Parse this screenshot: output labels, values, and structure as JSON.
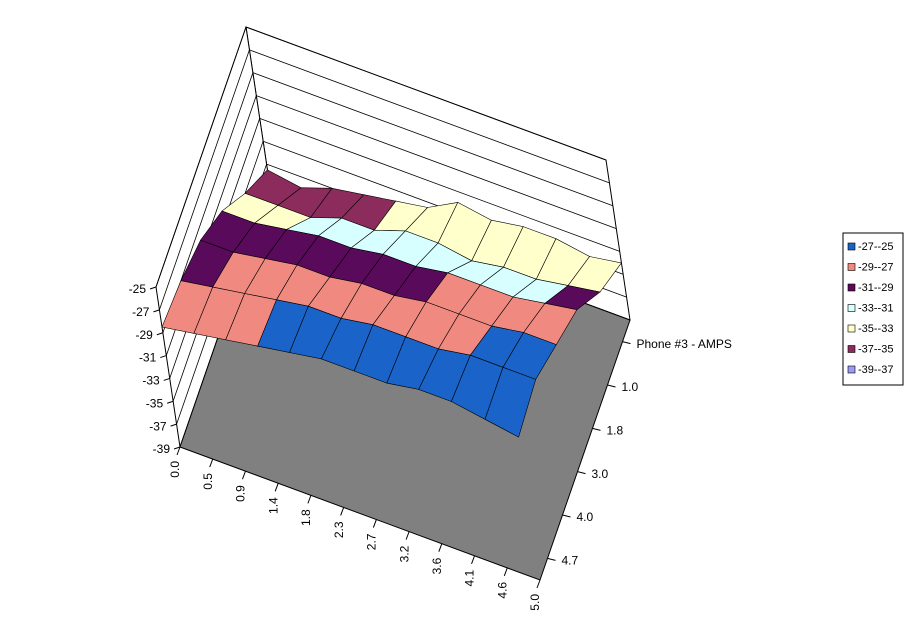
{
  "chart_data": {
    "type": "surface",
    "categories": [
      "0.0",
      "0.5",
      "0.9",
      "1.4",
      "1.8",
      "2.3",
      "2.7",
      "3.2",
      "3.6",
      "4.1",
      "4.6",
      "5.0"
    ],
    "depth_categories": [
      "Phone #3 - AMPS",
      "1.0",
      "1.8",
      "3.0",
      "4.0",
      "4.7"
    ],
    "z": [
      [
        -37.5,
        -38,
        -37,
        -36.5,
        -36,
        -35.5,
        -34,
        -34.5,
        -34,
        -34,
        -34.5,
        -34
      ],
      [
        -35,
        -35,
        -35,
        -34,
        -34,
        -33,
        -33,
        -33.5,
        -33,
        -33,
        -32.5,
        -32
      ],
      [
        -32,
        -32,
        -31.5,
        -31,
        -31,
        -30.5,
        -30.5,
        -30,
        -30,
        -30,
        -29.5,
        -29
      ],
      [
        -30,
        -30,
        -29.5,
        -29,
        -29,
        -28.5,
        -28.5,
        -28,
        -28,
        -28,
        -27.5,
        -27.5
      ],
      [
        -29,
        -28.5,
        -28,
        -27.5,
        -27,
        -27,
        -26.5,
        -26.5,
        -26.5,
        -26,
        -26,
        -26
      ],
      [
        -28.5,
        -28,
        -27.5,
        -27,
        -26.5,
        -26,
        -26,
        -26,
        -25.5,
        -25.5,
        -26,
        -26.5
      ]
    ],
    "zlim": [
      -39,
      -25
    ],
    "zticks": [
      -39,
      -37,
      -35,
      -33,
      -31,
      -29,
      -27,
      -25
    ],
    "bands": [
      {
        "label": "-27--25",
        "color": "#1a63c9"
      },
      {
        "label": "-29--27",
        "color": "#f08a80"
      },
      {
        "label": "-31--29",
        "color": "#5a0a5a"
      },
      {
        "label": "-33--31",
        "color": "#d8ffff"
      },
      {
        "label": "-35--33",
        "color": "#ffffcc"
      },
      {
        "label": "-37--35",
        "color": "#8c2c5c"
      },
      {
        "label": "-39--37",
        "color": "#9b9bf7"
      }
    ],
    "floor_color": "#808080"
  }
}
